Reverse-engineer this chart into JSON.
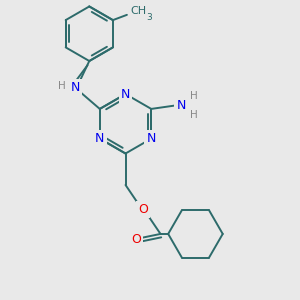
{
  "bg_color": "#e9e9e9",
  "bond_color": "#2d6b6b",
  "n_color": "#0000ee",
  "o_color": "#ee0000",
  "h_color": "#888888",
  "bond_lw": 1.4,
  "font_size_atom": 9,
  "font_size_h": 7.5,
  "figsize": [
    3.0,
    3.0
  ],
  "dpi": 100,
  "xlim": [
    -2.5,
    4.5
  ],
  "ylim": [
    -5.0,
    3.5
  ]
}
